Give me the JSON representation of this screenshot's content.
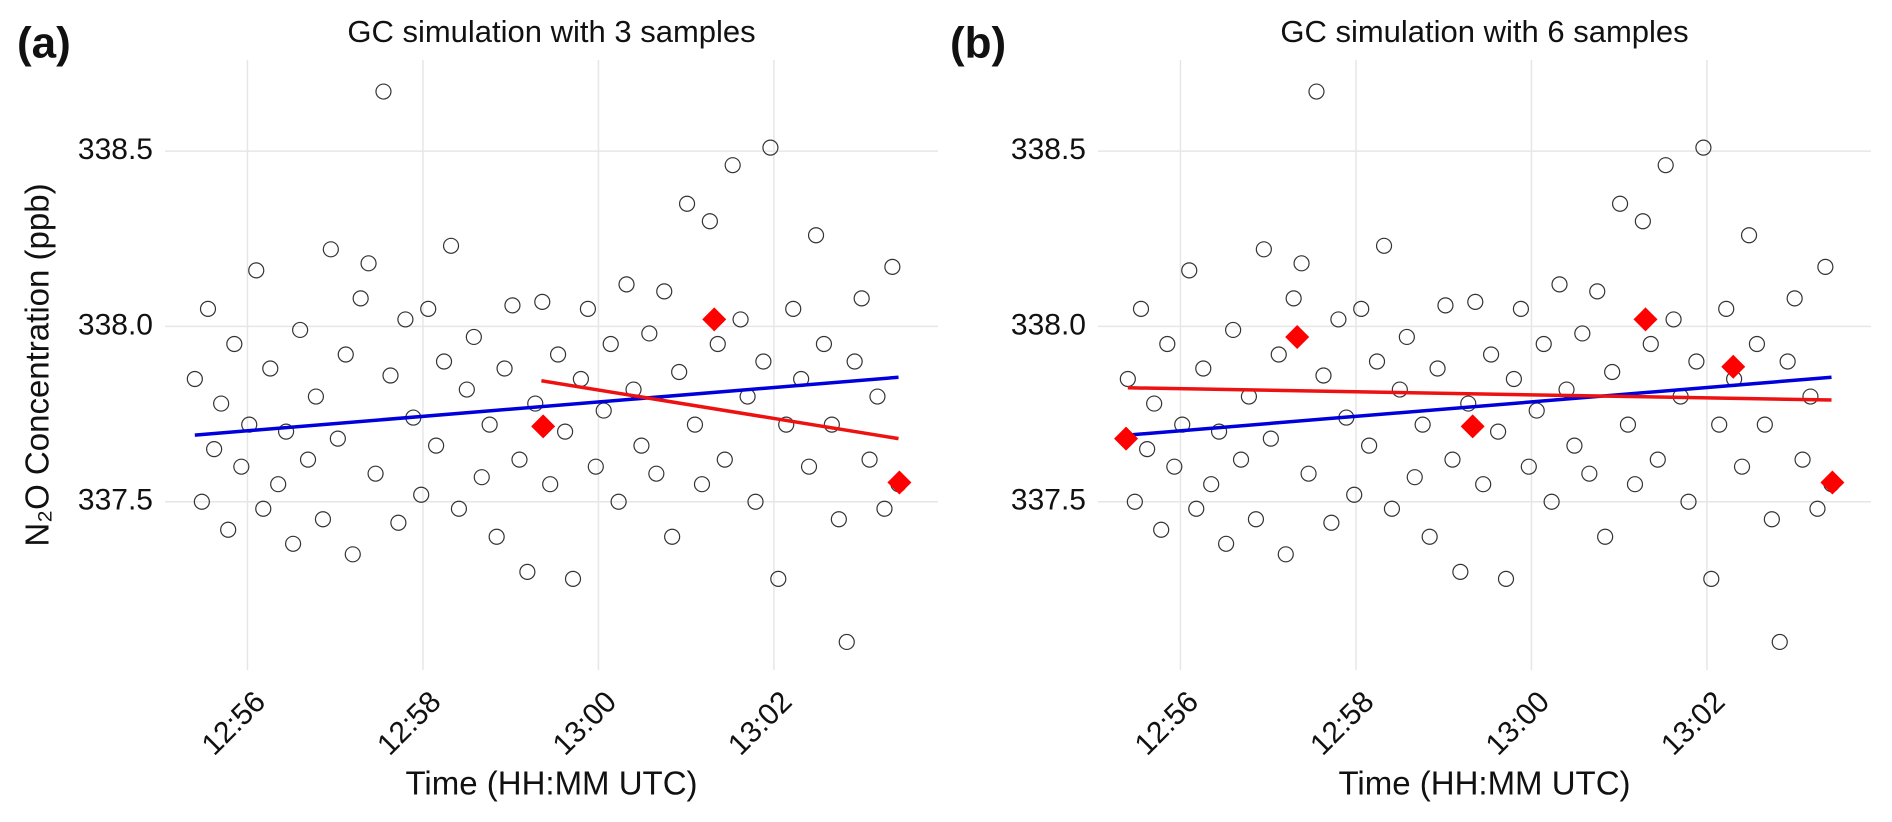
{
  "chart_data": [
    {
      "type": "scatter",
      "panel_label": "(a)",
      "title": "GC simulation with 3 samples",
      "x_label": "Time (HH:MM UTC)",
      "y_label": "N₂O Concentration (ppb)",
      "xlim": [
        55.06,
        63.87
      ],
      "ylim": [
        337.02,
        338.76
      ],
      "xticks": [
        {
          "value": 56,
          "label": "12:56"
        },
        {
          "value": 58,
          "label": "12:58"
        },
        {
          "value": 60,
          "label": "13:00"
        },
        {
          "value": 62,
          "label": "13:02"
        }
      ],
      "yticks": [
        {
          "value": 337.5,
          "label": "337.5"
        },
        {
          "value": 338,
          "label": "338.0"
        },
        {
          "value": 338.5,
          "label": "338.5"
        }
      ],
      "grid": true,
      "points": {
        "color": "#333333",
        "x": [
          55.4,
          55.48,
          55.55,
          55.62,
          55.7,
          55.78,
          55.85,
          55.93,
          56.02,
          56.1,
          56.18,
          56.26,
          56.35,
          56.44,
          56.52,
          56.6,
          56.69,
          56.78,
          56.86,
          56.95,
          57.03,
          57.12,
          57.2,
          57.29,
          57.38,
          57.46,
          57.55,
          57.63,
          57.72,
          57.8,
          57.89,
          57.98,
          58.06,
          58.15,
          58.24,
          58.32,
          58.41,
          58.5,
          58.58,
          58.67,
          58.76,
          58.84,
          58.93,
          59.02,
          59.1,
          59.19,
          59.28,
          59.36,
          59.45,
          59.54,
          59.62,
          59.71,
          59.8,
          59.88,
          59.97,
          60.06,
          60.14,
          60.23,
          60.32,
          60.4,
          60.49,
          60.58,
          60.66,
          60.75,
          60.84,
          60.92,
          61.01,
          61.1,
          61.18,
          61.27,
          61.36,
          61.44,
          61.53,
          61.62,
          61.7,
          61.79,
          61.88,
          61.96,
          62.05,
          62.14,
          62.22,
          62.31,
          62.4,
          62.48,
          62.57,
          62.66,
          62.74,
          62.83,
          62.92,
          63.0,
          63.09,
          63.18,
          63.26,
          63.35,
          63.42
        ],
        "y": [
          337.85,
          337.5,
          338.05,
          337.65,
          337.78,
          337.42,
          337.95,
          337.6,
          337.72,
          338.16,
          337.48,
          337.88,
          337.55,
          337.7,
          337.38,
          337.99,
          337.62,
          337.8,
          337.45,
          338.22,
          337.68,
          337.92,
          337.35,
          338.08,
          338.18,
          337.58,
          338.67,
          337.86,
          337.44,
          338.02,
          337.74,
          337.52,
          338.05,
          337.66,
          337.9,
          338.23,
          337.48,
          337.82,
          337.97,
          337.57,
          337.72,
          337.4,
          337.88,
          338.06,
          337.62,
          337.3,
          337.78,
          338.07,
          337.55,
          337.92,
          337.7,
          337.28,
          337.85,
          338.05,
          337.6,
          337.76,
          337.95,
          337.5,
          338.12,
          337.82,
          337.66,
          337.98,
          337.58,
          338.1,
          337.4,
          337.87,
          338.35,
          337.72,
          337.55,
          338.3,
          337.95,
          337.62,
          338.46,
          338.02,
          337.8,
          337.5,
          337.9,
          338.51,
          337.28,
          337.72,
          338.05,
          337.85,
          337.6,
          338.26,
          337.95,
          337.72,
          337.45,
          337.1,
          337.9,
          338.08,
          337.62,
          337.8,
          337.48,
          338.17,
          337.55
        ]
      },
      "samples": {
        "color": "#ff0000",
        "x": [
          59.37,
          61.32,
          63.43
        ],
        "y": [
          337.715,
          338.02,
          337.555
        ]
      },
      "fits": [
        {
          "color": "#0000dd",
          "x": [
            55.4,
            63.42
          ],
          "y": [
            337.69,
            337.855
          ]
        },
        {
          "color": "#ee1111",
          "x": [
            59.35,
            63.42
          ],
          "y": [
            337.845,
            337.68
          ]
        }
      ]
    },
    {
      "type": "scatter",
      "panel_label": "(b)",
      "title": "GC simulation with 6 samples",
      "x_label": "Time (HH:MM UTC)",
      "xlim": [
        55.06,
        63.87
      ],
      "ylim": [
        337.02,
        338.76
      ],
      "xticks": [
        {
          "value": 56,
          "label": "12:56"
        },
        {
          "value": 58,
          "label": "12:58"
        },
        {
          "value": 60,
          "label": "13:00"
        },
        {
          "value": 62,
          "label": "13:02"
        }
      ],
      "yticks": [
        {
          "value": 337.5,
          "label": "337.5"
        },
        {
          "value": 338,
          "label": "338.0"
        },
        {
          "value": 338.5,
          "label": "338.5"
        }
      ],
      "grid": true,
      "points": {
        "color": "#333333",
        "x": [
          55.4,
          55.48,
          55.55,
          55.62,
          55.7,
          55.78,
          55.85,
          55.93,
          56.02,
          56.1,
          56.18,
          56.26,
          56.35,
          56.44,
          56.52,
          56.6,
          56.69,
          56.78,
          56.86,
          56.95,
          57.03,
          57.12,
          57.2,
          57.29,
          57.38,
          57.46,
          57.55,
          57.63,
          57.72,
          57.8,
          57.89,
          57.98,
          58.06,
          58.15,
          58.24,
          58.32,
          58.41,
          58.5,
          58.58,
          58.67,
          58.76,
          58.84,
          58.93,
          59.02,
          59.1,
          59.19,
          59.28,
          59.36,
          59.45,
          59.54,
          59.62,
          59.71,
          59.8,
          59.88,
          59.97,
          60.06,
          60.14,
          60.23,
          60.32,
          60.4,
          60.49,
          60.58,
          60.66,
          60.75,
          60.84,
          60.92,
          61.01,
          61.1,
          61.18,
          61.27,
          61.36,
          61.44,
          61.53,
          61.62,
          61.7,
          61.79,
          61.88,
          61.96,
          62.05,
          62.14,
          62.22,
          62.31,
          62.4,
          62.48,
          62.57,
          62.66,
          62.74,
          62.83,
          62.92,
          63.0,
          63.09,
          63.18,
          63.26,
          63.35,
          63.42
        ],
        "y": [
          337.85,
          337.5,
          338.05,
          337.65,
          337.78,
          337.42,
          337.95,
          337.6,
          337.72,
          338.16,
          337.48,
          337.88,
          337.55,
          337.7,
          337.38,
          337.99,
          337.62,
          337.8,
          337.45,
          338.22,
          337.68,
          337.92,
          337.35,
          338.08,
          338.18,
          337.58,
          338.67,
          337.86,
          337.44,
          338.02,
          337.74,
          337.52,
          338.05,
          337.66,
          337.9,
          338.23,
          337.48,
          337.82,
          337.97,
          337.57,
          337.72,
          337.4,
          337.88,
          338.06,
          337.62,
          337.3,
          337.78,
          338.07,
          337.55,
          337.92,
          337.7,
          337.28,
          337.85,
          338.05,
          337.6,
          337.76,
          337.95,
          337.5,
          338.12,
          337.82,
          337.66,
          337.98,
          337.58,
          338.1,
          337.4,
          337.87,
          338.35,
          337.72,
          337.55,
          338.3,
          337.95,
          337.62,
          338.46,
          338.02,
          337.8,
          337.5,
          337.9,
          338.51,
          337.28,
          337.72,
          338.05,
          337.85,
          337.6,
          338.26,
          337.95,
          337.72,
          337.45,
          337.1,
          337.9,
          338.08,
          337.62,
          337.8,
          337.48,
          338.17,
          337.55
        ]
      },
      "samples": {
        "color": "#ff0000",
        "x": [
          55.38,
          57.33,
          59.33,
          61.3,
          62.3,
          63.43
        ],
        "y": [
          337.68,
          337.97,
          337.715,
          338.02,
          337.885,
          337.555
        ]
      },
      "fits": [
        {
          "color": "#0000dd",
          "x": [
            55.4,
            63.42
          ],
          "y": [
            337.69,
            337.855
          ]
        },
        {
          "color": "#ee1111",
          "x": [
            55.4,
            63.42
          ],
          "y": [
            337.825,
            337.79
          ]
        }
      ]
    }
  ]
}
